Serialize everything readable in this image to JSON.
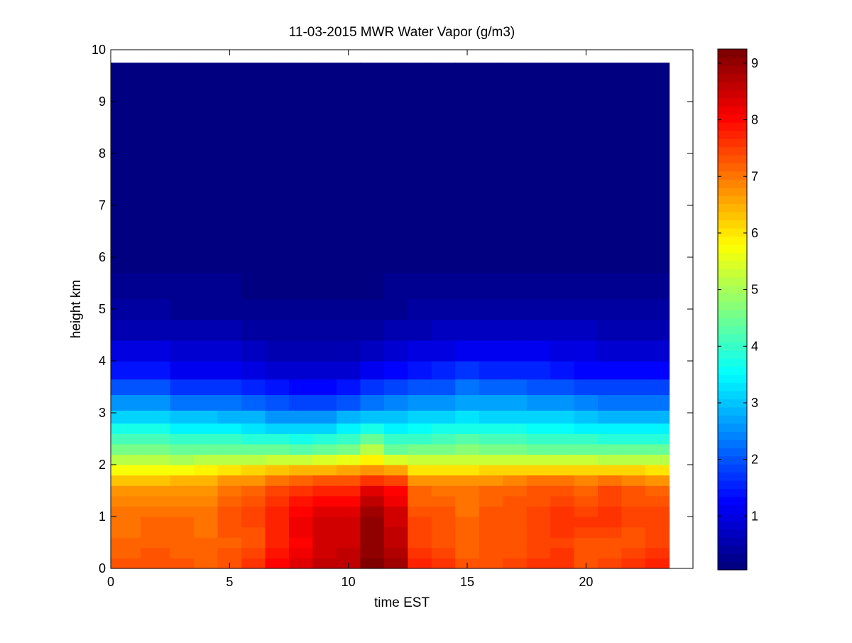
{
  "chart_data": {
    "type": "heatmap",
    "title": "11-03-2015 MWR Water Vapor (g/m3)",
    "xlabel": "time EST",
    "ylabel": "height km",
    "xlim": [
      0,
      24.5
    ],
    "ylim": [
      0,
      10
    ],
    "xticks": [
      0,
      5,
      10,
      15,
      20
    ],
    "yticks": [
      0,
      1,
      2,
      3,
      4,
      5,
      6,
      7,
      8,
      9,
      10
    ],
    "colorbar": {
      "colormap": "jet",
      "clim": [
        0.05,
        9.25
      ],
      "ticks": [
        1,
        2,
        3,
        4,
        5,
        6,
        7,
        8,
        9
      ]
    },
    "grid": false,
    "x_range_of_data": [
      0,
      23.5
    ],
    "y_range_of_data": [
      0,
      9.75
    ],
    "times": [
      0.5,
      2,
      3,
      4,
      5,
      6,
      7,
      8,
      9,
      10,
      11,
      12,
      13,
      14,
      15,
      16,
      17,
      18,
      19,
      20,
      21,
      22,
      23
    ],
    "heights": [
      0.1,
      0.3,
      0.5,
      0.7,
      0.9,
      1.1,
      1.3,
      1.5,
      1.7,
      1.9,
      2.1,
      2.3,
      2.5,
      2.7,
      2.9,
      3.2,
      3.5,
      3.8,
      4.2,
      4.6,
      5.0,
      5.4,
      6.0,
      7.0,
      8.0,
      9.0
    ],
    "profile_heights": [
      0,
      0.5,
      1.0,
      1.5,
      1.8,
      2.0,
      2.3,
      2.6,
      2.9,
      3.3,
      3.8,
      4.3,
      5.0,
      6.0,
      9.75
    ],
    "profiles": [
      [
        7.3,
        7.1,
        7.0,
        6.8,
        6.1,
        5.5,
        4.6,
        3.9,
        3.2,
        2.4,
        1.4,
        0.8,
        0.35,
        0.12,
        0.05
      ],
      [
        7.4,
        7.2,
        7.1,
        6.7,
        6.2,
        5.4,
        4.6,
        3.9,
        3.2,
        2.4,
        1.4,
        0.8,
        0.35,
        0.12,
        0.05
      ],
      [
        7.3,
        7.1,
        7.1,
        6.8,
        6.2,
        5.3,
        4.5,
        3.7,
        3.0,
        2.1,
        1.2,
        0.75,
        0.33,
        0.12,
        0.05
      ],
      [
        7.2,
        7.1,
        7.0,
        6.8,
        6.3,
        5.4,
        4.5,
        3.7,
        3.0,
        2.1,
        1.2,
        0.75,
        0.33,
        0.12,
        0.05
      ],
      [
        7.4,
        7.2,
        7.3,
        7.0,
        6.5,
        5.5,
        4.5,
        3.7,
        2.9,
        2.0,
        1.2,
        0.7,
        0.3,
        0.1,
        0.05
      ],
      [
        7.6,
        7.3,
        7.5,
        7.1,
        6.6,
        5.6,
        4.4,
        3.6,
        2.8,
        1.9,
        1.0,
        0.6,
        0.25,
        0.1,
        0.05
      ],
      [
        8.0,
        7.8,
        7.8,
        7.4,
        6.8,
        5.7,
        4.4,
        3.5,
        2.6,
        1.7,
        0.9,
        0.55,
        0.25,
        0.1,
        0.05
      ],
      [
        8.4,
        8.1,
        8.2,
        7.6,
        7.0,
        5.8,
        4.3,
        3.4,
        2.5,
        1.6,
        0.8,
        0.45,
        0.22,
        0.08,
        0.05
      ],
      [
        8.6,
        8.4,
        8.5,
        7.8,
        7.1,
        5.9,
        4.4,
        3.5,
        2.6,
        1.6,
        0.8,
        0.45,
        0.2,
        0.08,
        0.05
      ],
      [
        8.6,
        8.5,
        8.5,
        7.8,
        7.1,
        6.0,
        4.6,
        3.7,
        2.8,
        1.8,
        0.9,
        0.5,
        0.22,
        0.08,
        0.05
      ],
      [
        9.2,
        9.0,
        9.1,
        8.3,
        7.3,
        6.3,
        5.1,
        4.0,
        3.0,
        2.0,
        1.1,
        0.6,
        0.25,
        0.1,
        0.05
      ],
      [
        8.9,
        8.6,
        8.5,
        8.0,
        7.2,
        5.9,
        4.5,
        3.7,
        3.0,
        2.2,
        1.3,
        0.7,
        0.3,
        0.1,
        0.05
      ],
      [
        7.8,
        7.4,
        7.4,
        7.1,
        6.5,
        5.6,
        4.6,
        3.8,
        3.1,
        2.3,
        1.4,
        0.8,
        0.35,
        0.12,
        0.05
      ],
      [
        7.6,
        7.3,
        7.3,
        7.0,
        6.5,
        5.6,
        4.6,
        3.9,
        3.2,
        2.4,
        1.5,
        0.9,
        0.4,
        0.12,
        0.05
      ],
      [
        7.4,
        7.1,
        7.1,
        7.0,
        6.5,
        5.6,
        4.7,
        4.0,
        3.3,
        2.6,
        1.7,
        1.0,
        0.45,
        0.15,
        0.05
      ],
      [
        7.4,
        7.3,
        7.3,
        7.1,
        6.6,
        5.6,
        4.6,
        3.9,
        3.2,
        2.5,
        1.6,
        1.0,
        0.45,
        0.15,
        0.05
      ],
      [
        7.5,
        7.3,
        7.4,
        7.2,
        6.7,
        5.6,
        4.6,
        3.9,
        3.2,
        2.5,
        1.6,
        1.0,
        0.45,
        0.15,
        0.05
      ],
      [
        7.6,
        7.4,
        7.5,
        7.3,
        6.8,
        5.6,
        4.5,
        3.8,
        3.1,
        2.4,
        1.5,
        0.95,
        0.42,
        0.14,
        0.05
      ],
      [
        7.6,
        7.5,
        7.6,
        7.3,
        6.8,
        5.6,
        4.5,
        3.8,
        3.1,
        2.3,
        1.4,
        0.9,
        0.4,
        0.13,
        0.05
      ],
      [
        7.4,
        7.3,
        7.6,
        7.2,
        6.7,
        5.6,
        4.5,
        3.7,
        3.0,
        2.2,
        1.3,
        0.85,
        0.4,
        0.13,
        0.05
      ],
      [
        7.5,
        7.3,
        7.7,
        7.4,
        6.8,
        5.6,
        4.4,
        3.6,
        2.9,
        2.1,
        1.3,
        0.8,
        0.38,
        0.13,
        0.05
      ],
      [
        7.7,
        7.3,
        7.5,
        7.3,
        6.7,
        5.5,
        4.4,
        3.6,
        2.9,
        2.1,
        1.3,
        0.8,
        0.38,
        0.13,
        0.05
      ],
      [
        7.9,
        7.4,
        7.5,
        7.2,
        6.6,
        5.5,
        4.4,
        3.6,
        2.9,
        2.1,
        1.3,
        0.8,
        0.38,
        0.13,
        0.05
      ]
    ]
  }
}
